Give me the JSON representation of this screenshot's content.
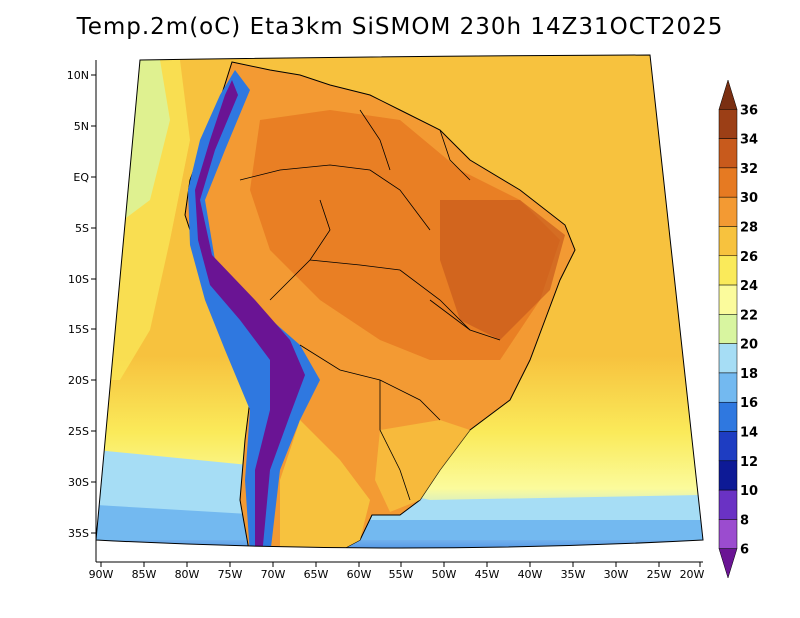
{
  "title": "Temp.2m(oC) Eta3km SiSMOM 230h 14Z31OCT2025",
  "map": {
    "lat_labels": [
      "10N",
      "5N",
      "EQ",
      "5S",
      "10S",
      "15S",
      "20S",
      "25S",
      "30S",
      "35S"
    ],
    "lon_labels": [
      "90W",
      "85W",
      "80W",
      "75W",
      "70W",
      "65W",
      "60W",
      "55W",
      "50W",
      "45W",
      "40W",
      "35W",
      "30W",
      "25W",
      "20W"
    ]
  },
  "colorbar": {
    "labels": [
      "36",
      "34",
      "32",
      "30",
      "28",
      "26",
      "24",
      "22",
      "20",
      "18",
      "16",
      "14",
      "12",
      "10",
      "8",
      "6"
    ],
    "colors": [
      "#7a2f12",
      "#9c3f16",
      "#c85a1c",
      "#e67a22",
      "#f39a33",
      "#f7c23e",
      "#faea5a",
      "#fbfb9c",
      "#d8f5a0",
      "#a6ddf5",
      "#73b9f0",
      "#2f78e0",
      "#1e3dc2",
      "#0d1a96",
      "#6a32c4",
      "#9b4ccf",
      "#6a1494"
    ]
  },
  "palette": {
    "ocean_warm": "#f7c23e",
    "ocean_mid": "#faea5a",
    "ocean_cool": "#fbfb9c",
    "land_hot": "#e67a22",
    "land_warm": "#f39a33",
    "andes_cold": "#2f78e0",
    "andes_peak": "#6a1494"
  }
}
